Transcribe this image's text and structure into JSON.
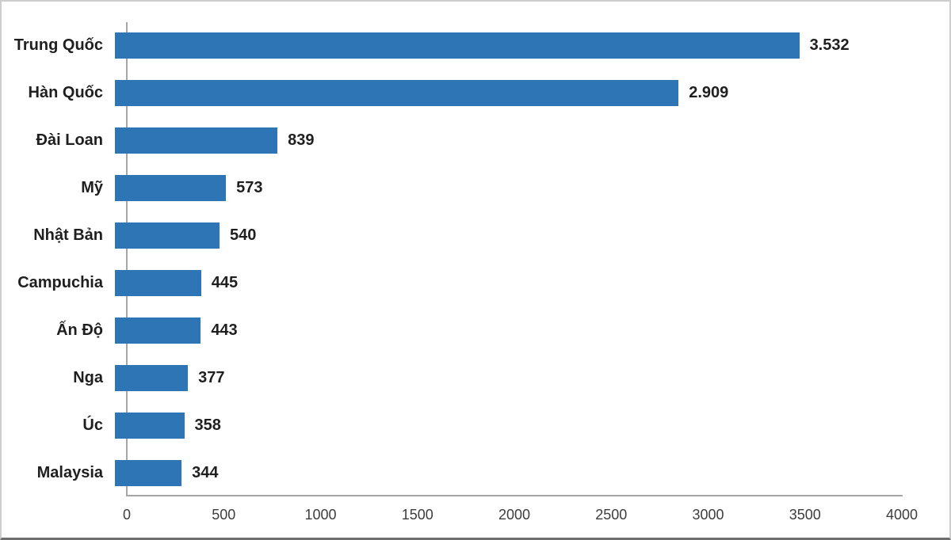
{
  "chart_data": {
    "type": "bar",
    "orientation": "horizontal",
    "title": "",
    "categories": [
      "Trung Quốc",
      "Hàn Quốc",
      "Đài Loan",
      "Mỹ",
      "Nhật Bản",
      "Campuchia",
      "Ấn Độ",
      "Nga",
      "Úc",
      "Malaysia"
    ],
    "values": [
      3532,
      2909,
      839,
      573,
      540,
      445,
      443,
      377,
      358,
      344
    ],
    "value_labels": [
      "3.532",
      "2.909",
      "839",
      "573",
      "540",
      "445",
      "443",
      "377",
      "358",
      "344"
    ],
    "xlabel": "",
    "ylabel": "",
    "xlim": [
      0,
      4000
    ],
    "x_ticks": [
      0,
      500,
      1000,
      1500,
      2000,
      2500,
      3000,
      3500,
      4000
    ],
    "x_tick_labels": [
      "0",
      "500",
      "1000",
      "1500",
      "2000",
      "2500",
      "3000",
      "3500",
      "4000"
    ],
    "grid": false,
    "legend": false,
    "bar_color": "#2e75b6",
    "axis_line_color": "#a6a6a6",
    "label_color": "#1f1f1f",
    "tick_color": "#3d3d3d"
  }
}
